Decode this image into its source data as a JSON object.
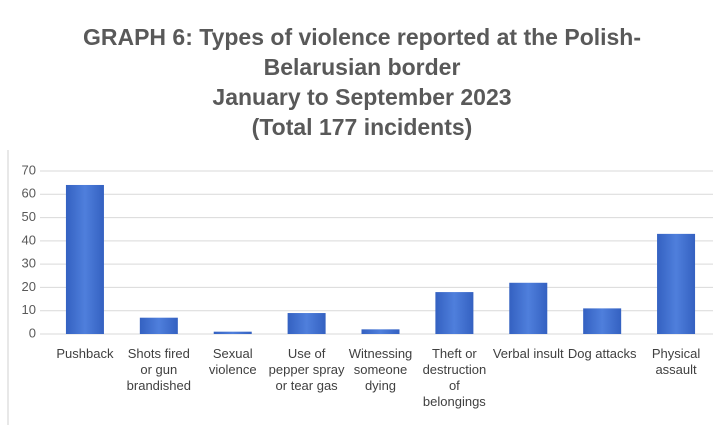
{
  "chart_data": {
    "type": "bar",
    "title": "GRAPH 6: Types of violence reported at the Polish-Belarusian border",
    "subtitle": [
      "January to September 2023",
      "(Total 177 incidents)"
    ],
    "categories": [
      "Pushback",
      "Shots fired or gun brandished",
      "Sexual violence",
      "Use of pepper spray or tear gas",
      "Witnessing someone dying",
      "Theft or destruction of belongings",
      "Verbal insult",
      "Dog attacks",
      "Physical assault"
    ],
    "values": [
      64,
      7,
      1,
      9,
      2,
      18,
      22,
      11,
      43
    ],
    "color": "#4472c4",
    "ylim": [
      0,
      70
    ],
    "yticks": [
      0,
      10,
      20,
      30,
      40,
      50,
      60,
      70
    ],
    "grid": true
  }
}
